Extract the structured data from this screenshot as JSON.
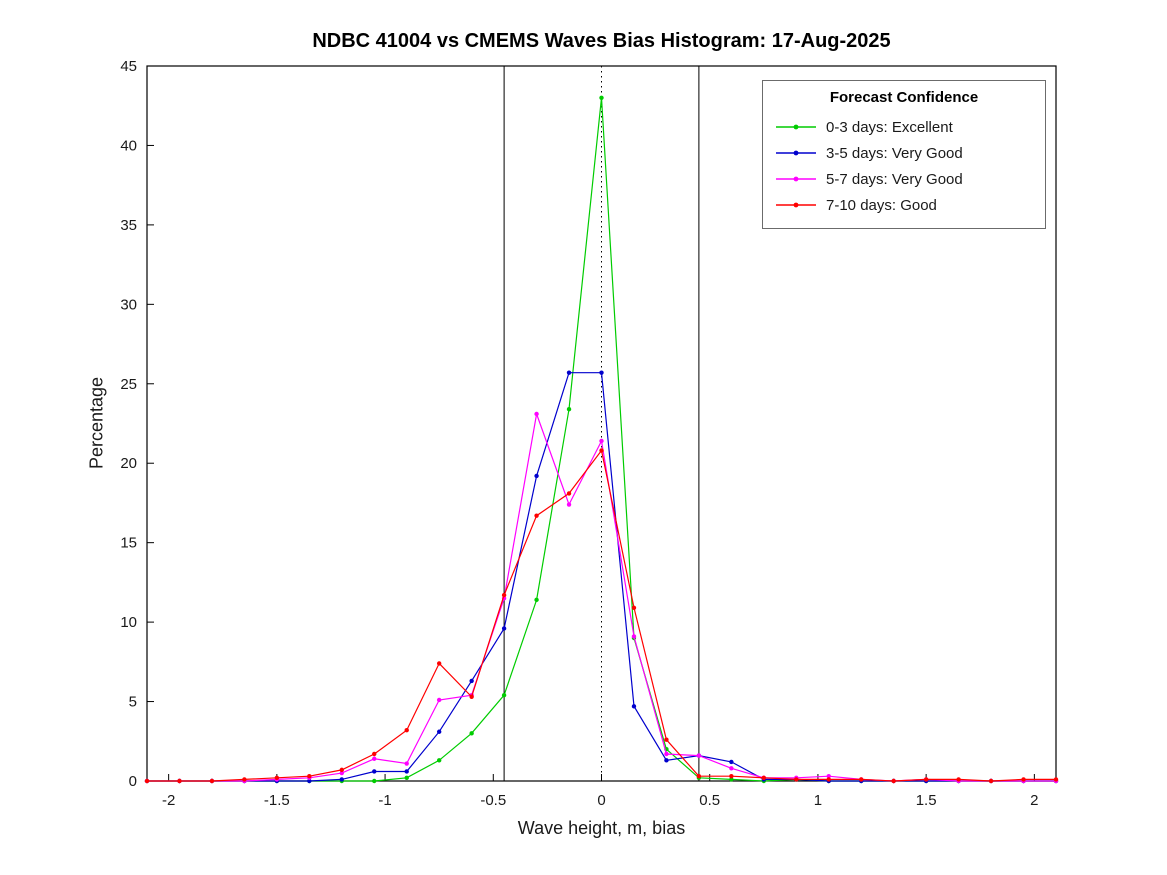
{
  "chart_data": {
    "type": "line",
    "title": "NDBC 41004 vs CMEMS Waves Bias Histogram: 17-Aug-2025",
    "xlabel": "Wave height, m, bias",
    "ylabel": "Percentage",
    "xlim": [
      -2.1,
      2.1
    ],
    "ylim": [
      0,
      45
    ],
    "xticks": [
      -2,
      -1.5,
      -1,
      -0.5,
      0,
      0.5,
      1,
      1.5,
      2
    ],
    "yticks": [
      0,
      5,
      10,
      15,
      20,
      25,
      30,
      35,
      40,
      45
    ],
    "grid": false,
    "legend_title": "Forecast Confidence",
    "legend_position": "top-right",
    "reference_lines": {
      "solid_vertical": [
        -0.45,
        0.45
      ],
      "dotted_vertical": [
        0
      ]
    },
    "x": [
      -2.1,
      -1.95,
      -1.8,
      -1.65,
      -1.5,
      -1.35,
      -1.2,
      -1.05,
      -0.9,
      -0.75,
      -0.6,
      -0.45,
      -0.3,
      -0.15,
      0,
      0.15,
      0.3,
      0.45,
      0.6,
      0.75,
      0.9,
      1.05,
      1.2,
      1.35,
      1.5,
      1.65,
      1.8,
      1.95,
      2.1
    ],
    "series": [
      {
        "name": "0-3 days: Excellent",
        "color": "#00cc00",
        "values": [
          0,
          0,
          0,
          0,
          0,
          0,
          0,
          0,
          0.2,
          1.3,
          3.0,
          5.4,
          11.4,
          23.4,
          43.0,
          9.0,
          2.0,
          0.2,
          0.1,
          0,
          0.1,
          0,
          0,
          0,
          0,
          0,
          0,
          0,
          0
        ]
      },
      {
        "name": "3-5 days: Very Good",
        "color": "#0000cd",
        "values": [
          0,
          0,
          0,
          0,
          0,
          0,
          0.1,
          0.6,
          0.6,
          3.1,
          6.3,
          9.6,
          19.2,
          25.7,
          25.7,
          4.7,
          1.3,
          1.6,
          1.2,
          0.1,
          0.1,
          0,
          0,
          0,
          0,
          0,
          0,
          0,
          0
        ]
      },
      {
        "name": "5-7 days: Very Good",
        "color": "#ff00ff",
        "values": [
          0,
          0,
          0,
          0,
          0.1,
          0.2,
          0.5,
          1.4,
          1.1,
          5.1,
          5.4,
          11.5,
          23.1,
          17.4,
          21.4,
          9.1,
          1.7,
          1.6,
          0.8,
          0.2,
          0.2,
          0.3,
          0.1,
          0,
          0.1,
          0,
          0,
          0,
          0
        ]
      },
      {
        "name": "7-10 days: Good",
        "color": "#ff0000",
        "values": [
          0,
          0,
          0,
          0.1,
          0.2,
          0.3,
          0.7,
          1.7,
          3.2,
          7.4,
          5.3,
          11.7,
          16.7,
          18.1,
          20.8,
          10.9,
          2.6,
          0.3,
          0.3,
          0.2,
          0.1,
          0.1,
          0.1,
          0,
          0.1,
          0.1,
          0,
          0.1,
          0.1
        ]
      }
    ]
  }
}
